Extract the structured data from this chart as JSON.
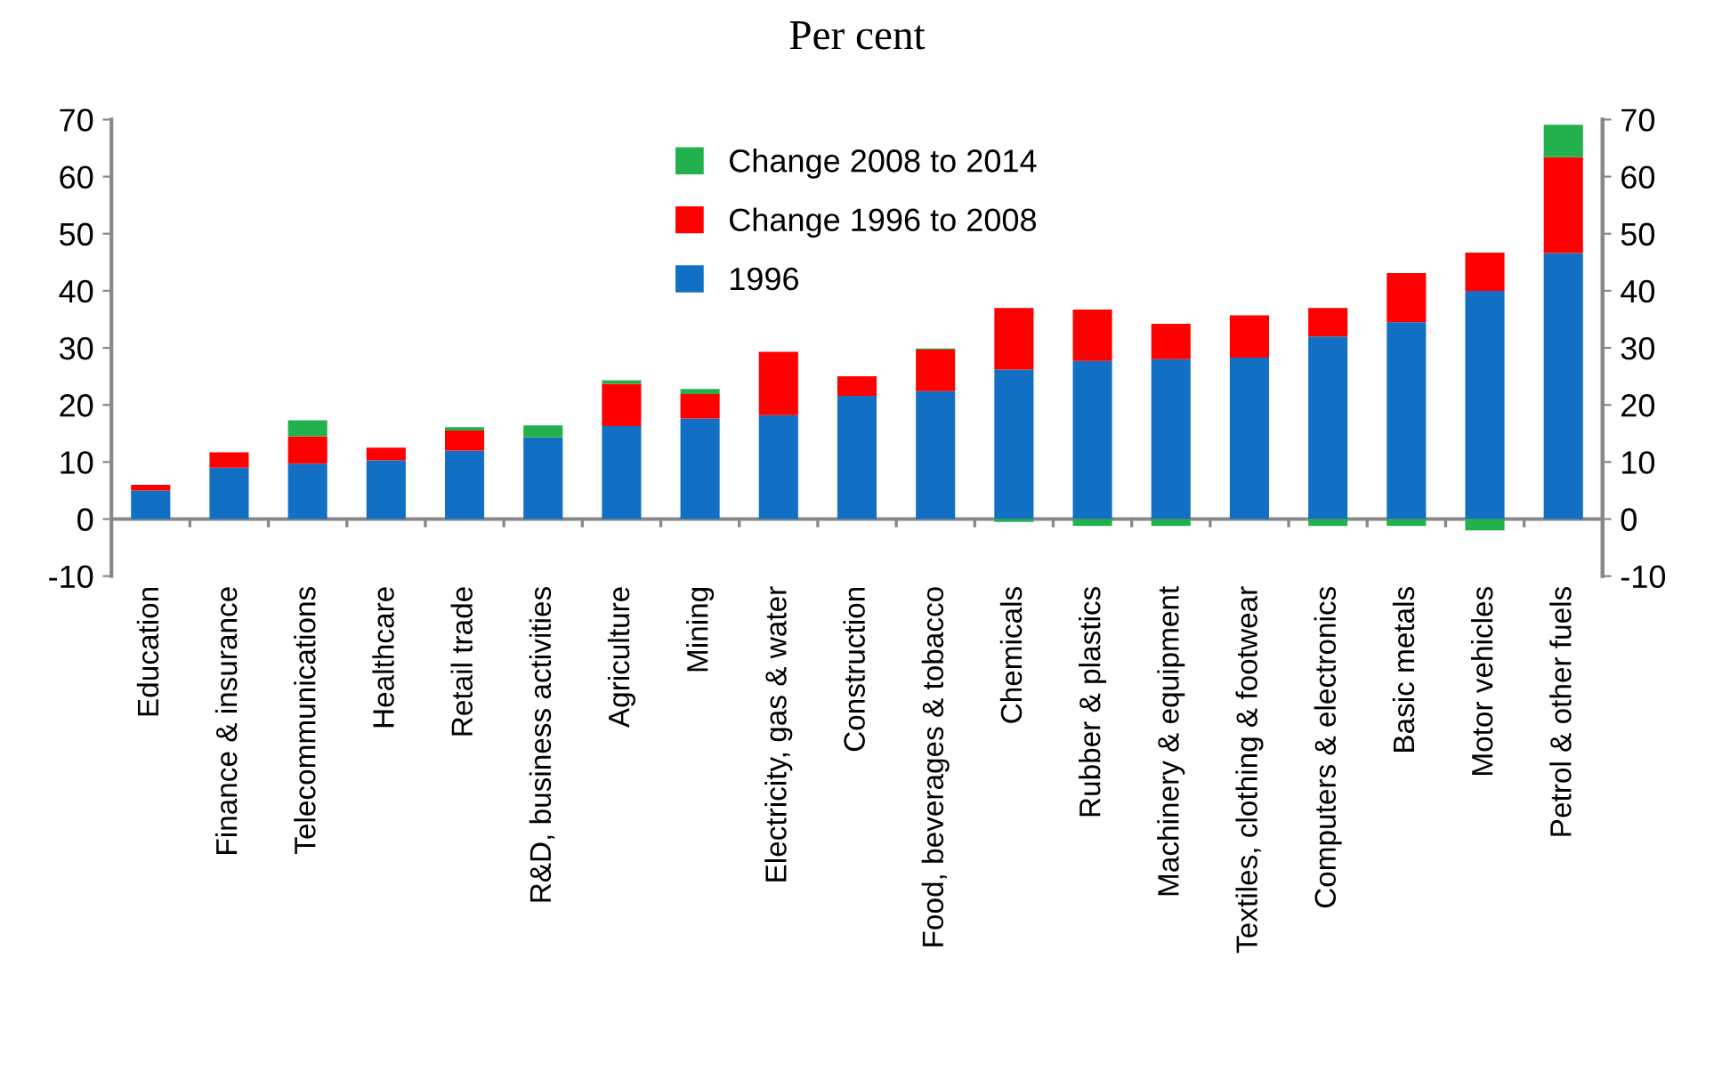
{
  "chart_data": {
    "type": "bar",
    "subtitle": "Per cent",
    "stacked": true,
    "categories": [
      "Education",
      "Finance & insurance",
      "Telecommunications",
      "Healthcare",
      "Retail trade",
      "R&D, business activities",
      "Agriculture",
      "Mining",
      "Electricity, gas & water",
      "Construction",
      "Food, beverages & tobacco",
      "Chemicals",
      "Rubber & plastics",
      "Machinery & equipment",
      "Textiles, clothing & footwear",
      "Computers & electronics",
      "Basic metals",
      "Motor vehicles",
      "Petrol & other fuels"
    ],
    "series": [
      {
        "name": "1996",
        "color": "#1170c4",
        "values": [
          5,
          9,
          9.7,
          10.3,
          12,
          14.3,
          16.3,
          17.6,
          18.2,
          21.6,
          22.4,
          26.2,
          27.7,
          28,
          28.3,
          32,
          34.5,
          40,
          46.6
        ]
      },
      {
        "name": "Change 1996 to 2008",
        "color": "#ff0000",
        "values": [
          1,
          2.7,
          4.8,
          2.2,
          3.5,
          0,
          7.4,
          4.3,
          11.1,
          3.4,
          7.3,
          10.8,
          9,
          6.2,
          7.4,
          5,
          8.6,
          6.7,
          16.8
        ]
      },
      {
        "name": "Change 2008 to 2014",
        "color": "#22b14c",
        "values": [
          0,
          0,
          2.8,
          0,
          0.6,
          2.1,
          0.6,
          0.9,
          0,
          0,
          0.2,
          -0.5,
          -1.2,
          -1.2,
          0,
          -1.2,
          -1.2,
          -2,
          5.7
        ]
      }
    ],
    "ylim": [
      -10,
      70
    ],
    "yticks": [
      -10,
      0,
      10,
      20,
      30,
      40,
      50,
      60,
      70
    ],
    "y2lim": [
      -10,
      70
    ],
    "y2ticks": [
      -10,
      0,
      10,
      20,
      30,
      40,
      50,
      60,
      70
    ],
    "legend": "top"
  }
}
